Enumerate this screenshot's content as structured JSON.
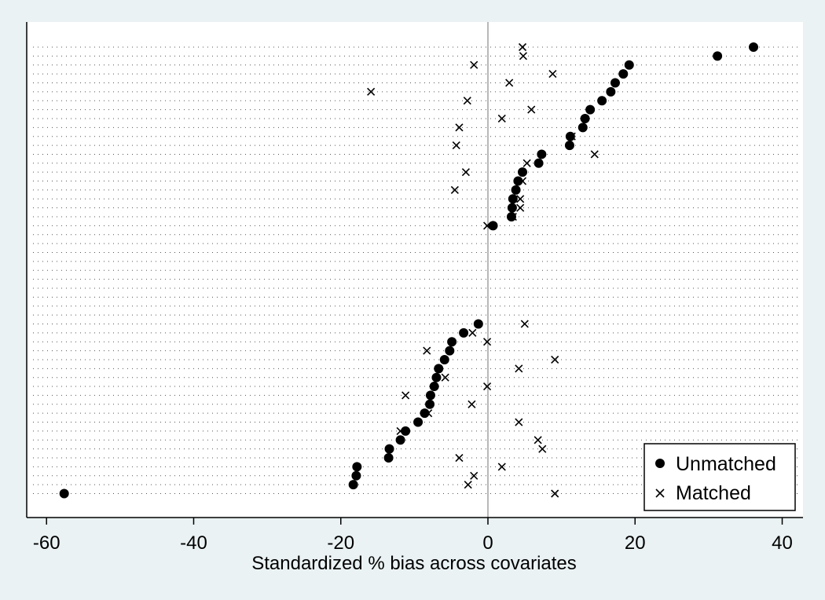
{
  "chart_data": {
    "type": "scatter",
    "title": "",
    "xlabel": "Standardized % bias across covariates",
    "ylabel": "",
    "xlim": [
      -63,
      43
    ],
    "x_ticks": [
      -60,
      -40,
      -20,
      0,
      20,
      40
    ],
    "x_tick_labels": [
      "-60",
      "-40",
      "-20",
      "0",
      "20",
      "40"
    ],
    "reference_line_x": 0,
    "grid": "dotted horizontal lines at each covariate row",
    "legend_position": "bottom-right",
    "row_count": 51,
    "series": [
      {
        "name": "Unmatched",
        "marker": "filled-circle",
        "color": "#000000",
        "values": [
          {
            "x": 36.1,
            "row": 0
          },
          {
            "x": 31.2,
            "row": 1
          },
          {
            "x": 19.2,
            "row": 2
          },
          {
            "x": 18.4,
            "row": 3
          },
          {
            "x": 17.3,
            "row": 4
          },
          {
            "x": 16.7,
            "row": 5
          },
          {
            "x": 15.5,
            "row": 6
          },
          {
            "x": 13.9,
            "row": 7
          },
          {
            "x": 13.2,
            "row": 8
          },
          {
            "x": 12.9,
            "row": 9
          },
          {
            "x": 11.2,
            "row": 10
          },
          {
            "x": 11.1,
            "row": 11
          },
          {
            "x": 7.3,
            "row": 12
          },
          {
            "x": 6.9,
            "row": 13
          },
          {
            "x": 4.7,
            "row": 14
          },
          {
            "x": 4.1,
            "row": 15
          },
          {
            "x": 3.8,
            "row": 16
          },
          {
            "x": 3.4,
            "row": 17
          },
          {
            "x": 3.3,
            "row": 18
          },
          {
            "x": 3.2,
            "row": 19
          },
          {
            "x": 0.7,
            "row": 20
          },
          {
            "x": -1.3,
            "row": 31
          },
          {
            "x": -3.3,
            "row": 32
          },
          {
            "x": -4.9,
            "row": 33
          },
          {
            "x": -5.2,
            "row": 34
          },
          {
            "x": -5.9,
            "row": 35
          },
          {
            "x": -6.7,
            "row": 36
          },
          {
            "x": -7.0,
            "row": 37
          },
          {
            "x": -7.3,
            "row": 38
          },
          {
            "x": -7.8,
            "row": 39
          },
          {
            "x": -7.9,
            "row": 40
          },
          {
            "x": -8.6,
            "row": 41
          },
          {
            "x": -9.5,
            "row": 42
          },
          {
            "x": -11.2,
            "row": 43
          },
          {
            "x": -11.9,
            "row": 44
          },
          {
            "x": -13.4,
            "row": 45
          },
          {
            "x": -13.5,
            "row": 46
          },
          {
            "x": -17.8,
            "row": 47
          },
          {
            "x": -17.9,
            "row": 48
          },
          {
            "x": -18.3,
            "row": 49
          },
          {
            "x": -57.6,
            "row": 50
          }
        ]
      },
      {
        "name": "Matched",
        "marker": "x-cross",
        "color": "#000000",
        "values": [
          {
            "x": 4.7,
            "row": 0
          },
          {
            "x": 4.8,
            "row": 1
          },
          {
            "x": -1.9,
            "row": 2
          },
          {
            "x": 8.8,
            "row": 3
          },
          {
            "x": 2.9,
            "row": 4
          },
          {
            "x": -15.9,
            "row": 5
          },
          {
            "x": -2.8,
            "row": 6
          },
          {
            "x": 5.9,
            "row": 7
          },
          {
            "x": 1.9,
            "row": 8
          },
          {
            "x": -3.9,
            "row": 9
          },
          {
            "x": 11.4,
            "row": 10
          },
          {
            "x": -4.3,
            "row": 11
          },
          {
            "x": 14.5,
            "row": 12
          },
          {
            "x": 5.3,
            "row": 13
          },
          {
            "x": -3.0,
            "row": 14
          },
          {
            "x": 4.7,
            "row": 15
          },
          {
            "x": -4.5,
            "row": 16
          },
          {
            "x": 4.4,
            "row": 17
          },
          {
            "x": 4.4,
            "row": 18
          },
          {
            "x": 3.4,
            "row": 19
          },
          {
            "x": -0.1,
            "row": 20
          },
          {
            "x": 5.0,
            "row": 31
          },
          {
            "x": -2.1,
            "row": 32
          },
          {
            "x": -0.1,
            "row": 33
          },
          {
            "x": -8.3,
            "row": 34
          },
          {
            "x": 9.1,
            "row": 35
          },
          {
            "x": 4.2,
            "row": 36
          },
          {
            "x": -5.8,
            "row": 37
          },
          {
            "x": -0.1,
            "row": 38
          },
          {
            "x": -11.2,
            "row": 39
          },
          {
            "x": -2.2,
            "row": 40
          },
          {
            "x": -8.1,
            "row": 41
          },
          {
            "x": 4.2,
            "row": 42
          },
          {
            "x": -11.9,
            "row": 43
          },
          {
            "x": 6.8,
            "row": 44
          },
          {
            "x": 7.4,
            "row": 45
          },
          {
            "x": -3.9,
            "row": 46
          },
          {
            "x": 1.9,
            "row": 47
          },
          {
            "x": -1.9,
            "row": 48
          },
          {
            "x": -2.7,
            "row": 49
          },
          {
            "x": 9.1,
            "row": 50
          }
        ]
      }
    ]
  }
}
